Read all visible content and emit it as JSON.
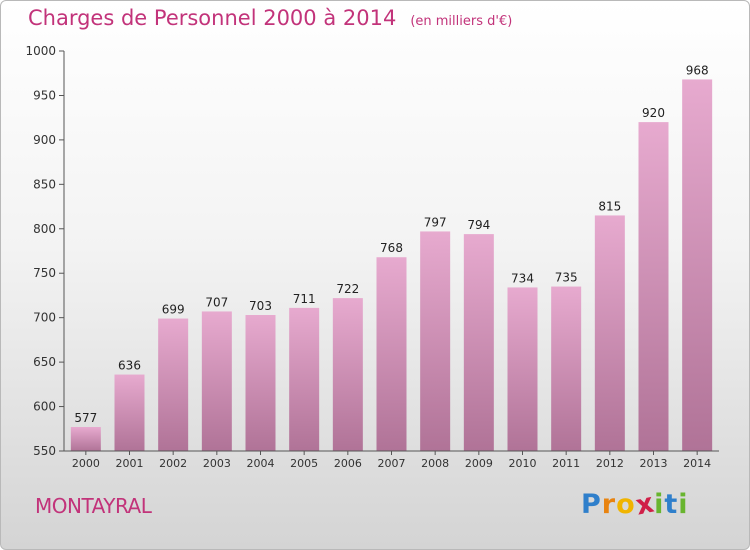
{
  "title": "Charges de Personnel 2000 à 2014",
  "subtitle": "(en milliers d'€)",
  "commune": "MONTAYRAL",
  "logo": {
    "letters": [
      "P",
      "r",
      "o",
      "x",
      "i",
      "t",
      "i"
    ],
    "colors": [
      "#2f7fcb",
      "#e8830f",
      "#f0b400",
      "#d01f48",
      "#68b52f",
      "#2f7fcb",
      "#68b52f"
    ]
  },
  "colors": {
    "title": "#c2337a",
    "bar_top": "#e7aacf",
    "bar_bottom": "#b07397",
    "axis": "#555555"
  },
  "chart_data": {
    "type": "bar",
    "title": "Charges de Personnel 2000 à 2014",
    "subtitle": "(en milliers d'€)",
    "categories": [
      "2000",
      "2001",
      "2002",
      "2003",
      "2004",
      "2005",
      "2006",
      "2007",
      "2008",
      "2009",
      "2010",
      "2011",
      "2012",
      "2013",
      "2014"
    ],
    "values": [
      577,
      636,
      699,
      707,
      703,
      711,
      722,
      768,
      797,
      794,
      734,
      735,
      815,
      920,
      968
    ],
    "ylim": [
      550,
      1000
    ],
    "yticks": [
      550,
      600,
      650,
      700,
      750,
      800,
      850,
      900,
      950,
      1000
    ],
    "xlabel": "",
    "ylabel": "",
    "grid": false,
    "legend": "none"
  }
}
